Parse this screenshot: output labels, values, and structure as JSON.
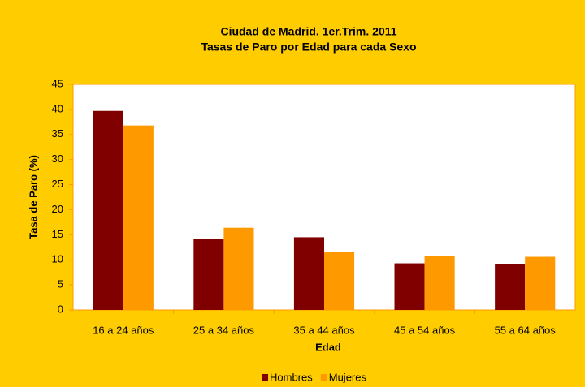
{
  "chart_data": {
    "type": "bar",
    "title": "Ciudad de Madrid. 1er.Trim. 2011",
    "subtitle": "Tasas de Paro por Edad para cada Sexo",
    "x_label": "Edad",
    "y_label": "Tasa de Paro (%)",
    "categories": [
      "16 a 24 años",
      "25 a 34 años",
      "35 a 44 años",
      "45 a 54 años",
      "55 a 64 años"
    ],
    "series": [
      {
        "name": "Hombres",
        "color": "#800000",
        "values": [
          39.7,
          14.1,
          14.5,
          9.3,
          9.2
        ]
      },
      {
        "name": "Mujeres",
        "color": "#FF9900",
        "values": [
          36.8,
          16.4,
          11.5,
          10.7,
          10.6
        ]
      }
    ],
    "ylim": [
      0,
      45
    ],
    "yticks": [
      0,
      5,
      10,
      15,
      20,
      25,
      30,
      35,
      40,
      45
    ],
    "grid": false,
    "legend": "bottom"
  }
}
